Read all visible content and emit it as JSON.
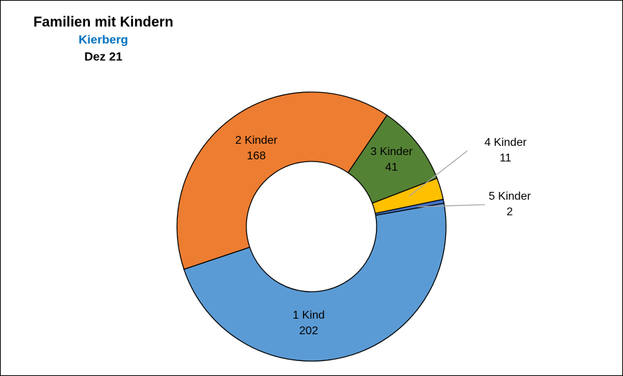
{
  "chart_data": {
    "type": "donut",
    "title": "Familien mit Kindern",
    "subtitle": "Kierberg",
    "date": "Dez 21",
    "categories": [
      "1 Kind",
      "2 Kinder",
      "3 Kinder",
      "4 Kinder",
      "5 Kinder"
    ],
    "values": [
      202,
      168,
      41,
      11,
      2
    ],
    "colors": [
      "#5b9bd5",
      "#ed7d31",
      "#548235",
      "#ffc000",
      "#4472c4"
    ]
  }
}
